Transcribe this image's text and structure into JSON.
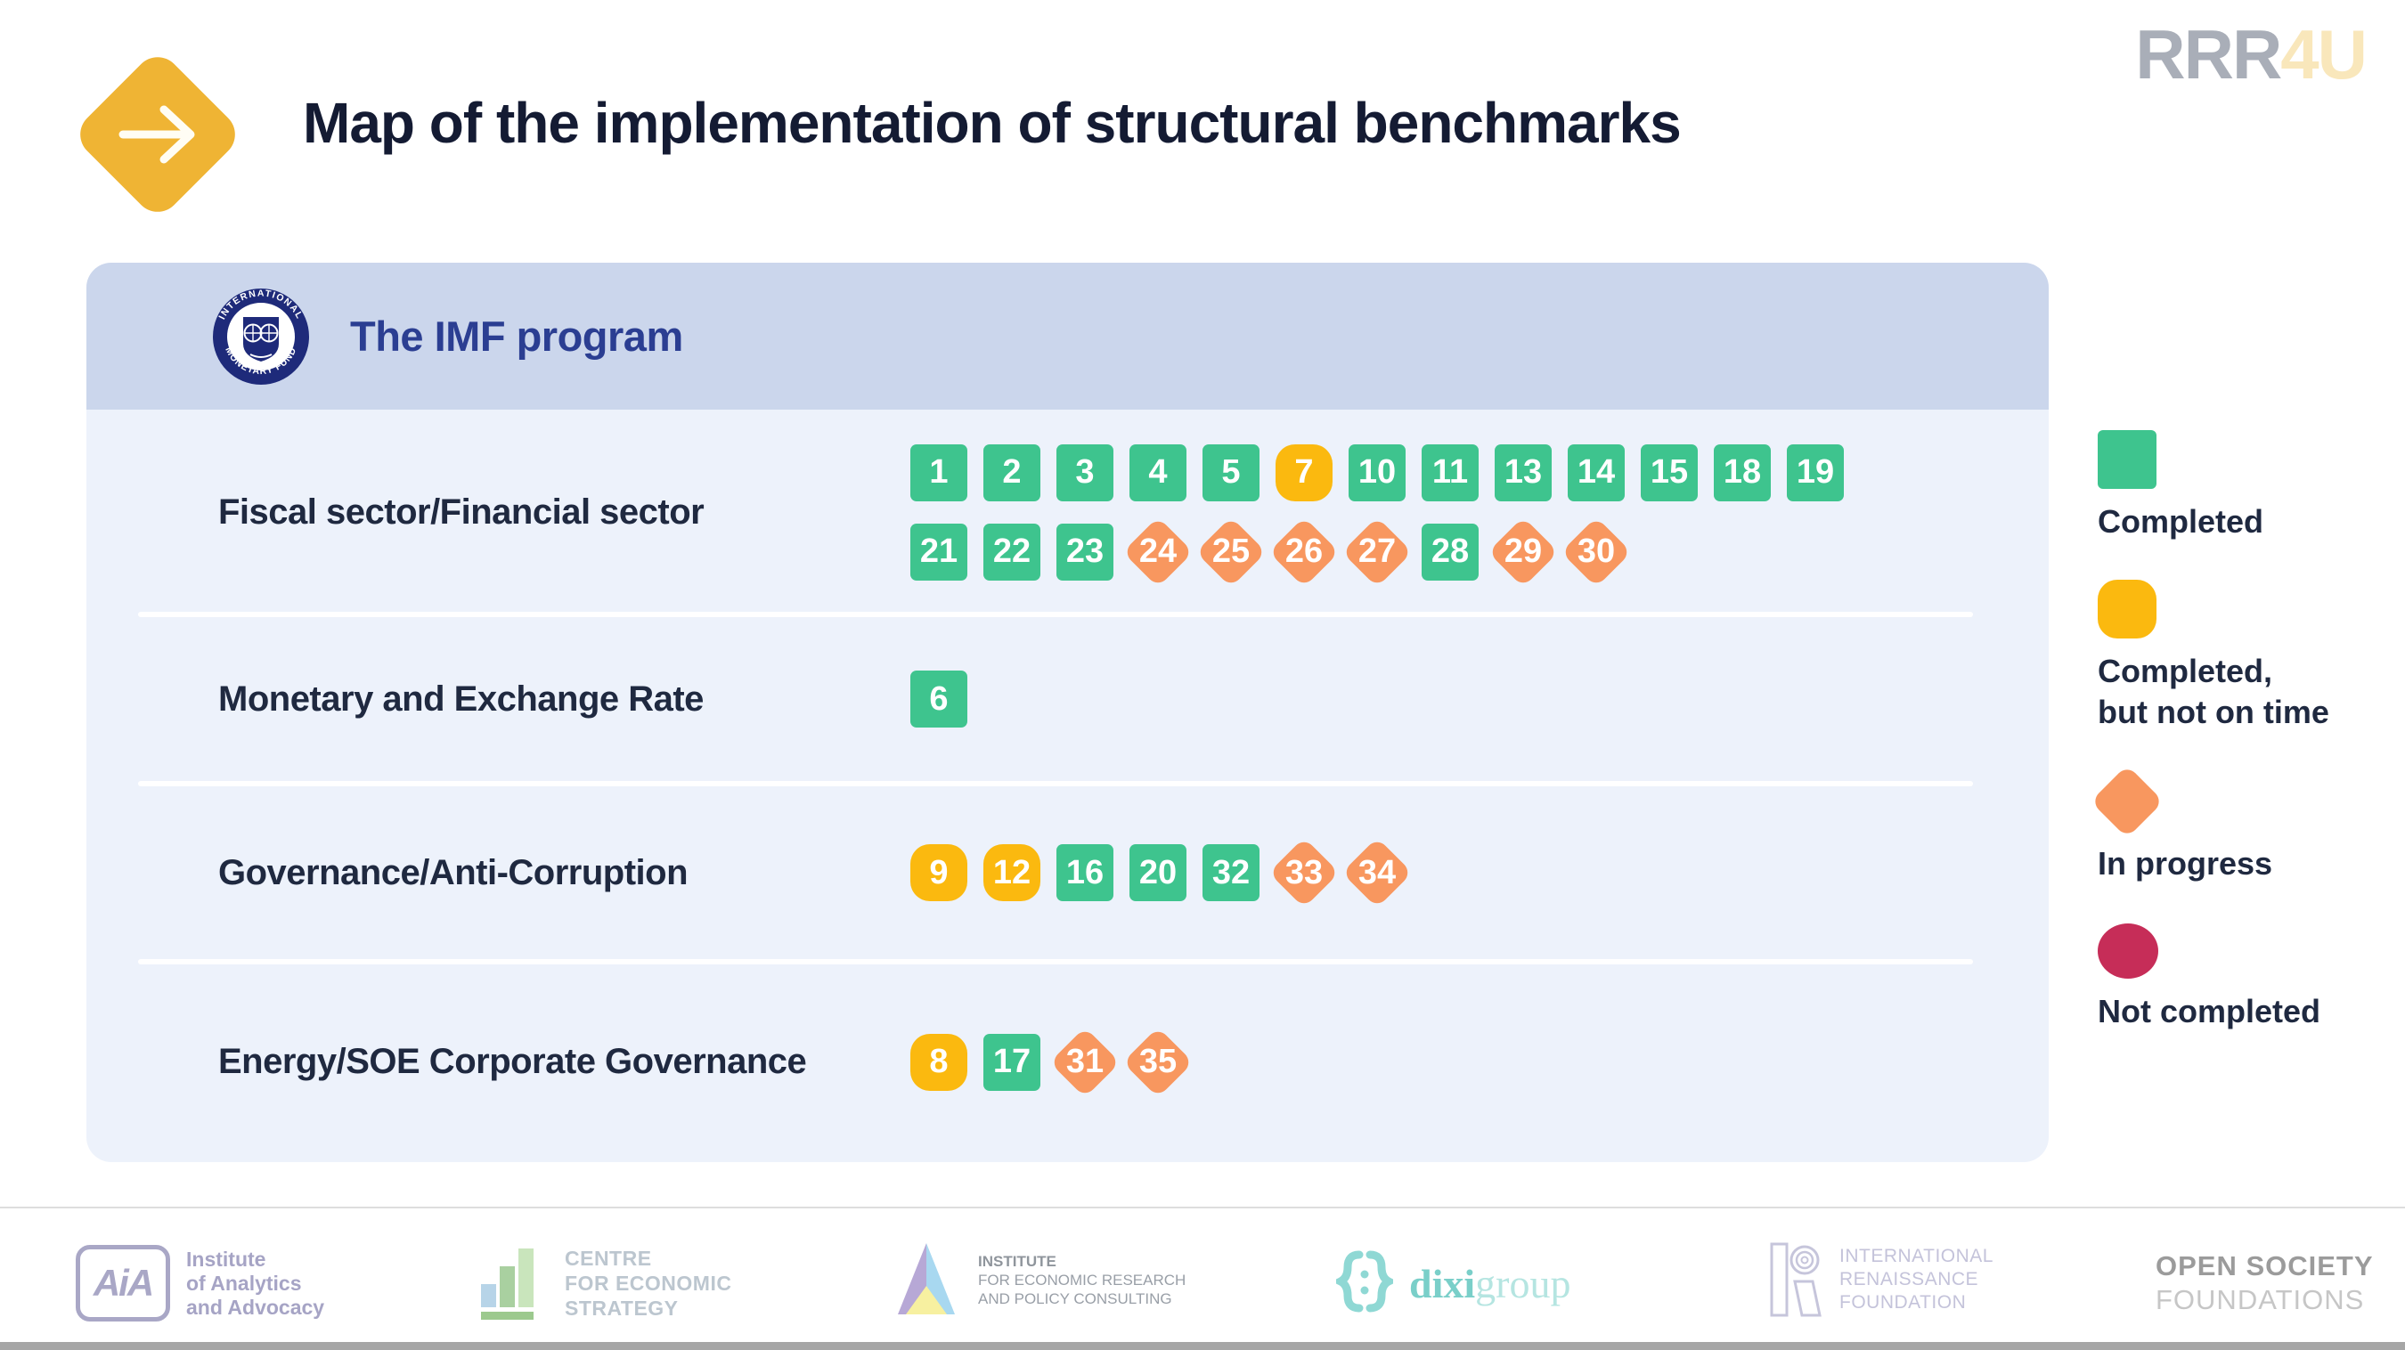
{
  "page": {
    "title": "Map of the implementation of structural benchmarks"
  },
  "brand": {
    "gray": "RRR",
    "accent": "4U"
  },
  "program": {
    "title": "The IMF program",
    "seal_top_text": "INTERNATIONAL",
    "seal_bottom_text": "MONETARY FUND",
    "rows": [
      {
        "label": "Fiscal sector/Financial sector",
        "lines": [
          [
            {
              "n": "1",
              "status": "completed"
            },
            {
              "n": "2",
              "status": "completed"
            },
            {
              "n": "3",
              "status": "completed"
            },
            {
              "n": "4",
              "status": "completed"
            },
            {
              "n": "5",
              "status": "completed"
            },
            {
              "n": "7",
              "status": "late"
            },
            {
              "n": "10",
              "status": "completed"
            },
            {
              "n": "11",
              "status": "completed"
            },
            {
              "n": "13",
              "status": "completed"
            },
            {
              "n": "14",
              "status": "completed"
            },
            {
              "n": "15",
              "status": "completed"
            },
            {
              "n": "18",
              "status": "completed"
            },
            {
              "n": "19",
              "status": "completed"
            }
          ],
          [
            {
              "n": "21",
              "status": "completed"
            },
            {
              "n": "22",
              "status": "completed"
            },
            {
              "n": "23",
              "status": "completed"
            },
            {
              "n": "24",
              "status": "progress"
            },
            {
              "n": "25",
              "status": "progress"
            },
            {
              "n": "26",
              "status": "progress"
            },
            {
              "n": "27",
              "status": "progress"
            },
            {
              "n": "28",
              "status": "completed"
            },
            {
              "n": "29",
              "status": "progress"
            },
            {
              "n": "30",
              "status": "progress"
            }
          ]
        ]
      },
      {
        "label": "Monetary and Exchange Rate",
        "lines": [
          [
            {
              "n": "6",
              "status": "completed"
            }
          ]
        ]
      },
      {
        "label": "Governance/Anti-Corruption",
        "lines": [
          [
            {
              "n": "9",
              "status": "late"
            },
            {
              "n": "12",
              "status": "late"
            },
            {
              "n": "16",
              "status": "completed"
            },
            {
              "n": "20",
              "status": "completed"
            },
            {
              "n": "32",
              "status": "completed"
            },
            {
              "n": "33",
              "status": "progress"
            },
            {
              "n": "34",
              "status": "progress"
            }
          ]
        ]
      },
      {
        "label": "Energy/SOE Corporate Governance",
        "lines": [
          [
            {
              "n": "8",
              "status": "late"
            },
            {
              "n": "17",
              "status": "completed"
            },
            {
              "n": "31",
              "status": "progress"
            },
            {
              "n": "35",
              "status": "progress"
            }
          ]
        ]
      }
    ]
  },
  "legend": [
    {
      "status": "completed",
      "label_lines": [
        "Completed"
      ]
    },
    {
      "status": "late",
      "label_lines": [
        "Completed,",
        "but not on time"
      ]
    },
    {
      "status": "progress",
      "label_lines": [
        "In progress"
      ]
    },
    {
      "status": "not_completed",
      "label_lines": [
        "Not completed"
      ]
    }
  ],
  "footer": {
    "partners": [
      {
        "id": "aia",
        "badge": "AiA",
        "lines": [
          "Institute",
          "of Analytics",
          "and Advocacy"
        ]
      },
      {
        "id": "ces",
        "lines": [
          "CENTRE",
          "FOR ECONOMIC",
          "STRATEGY"
        ]
      },
      {
        "id": "ier",
        "lines": [
          "INSTITUTE",
          "FOR ECONOMIC RESEARCH",
          "AND POLICY CONSULTING"
        ]
      },
      {
        "id": "dixi",
        "word_dark": "dixi",
        "word_light": "group"
      },
      {
        "id": "irf",
        "lines": [
          "INTERNATIONAL",
          "RENAISSANCE",
          "FOUNDATION"
        ]
      },
      {
        "id": "osf",
        "lines": [
          "OPEN SOCIETY",
          "FOUNDATIONS"
        ]
      }
    ]
  },
  "colors": {
    "completed": "#3EC48E",
    "late": "#FBB90F",
    "progress": "#F8975F",
    "not_completed": "#C62D58",
    "accent_gold": "#EFB434",
    "header_bg": "#CBD6EC",
    "card_bg": "#EDF2FB",
    "title_text": "#141B33",
    "label_text": "#1F2940",
    "imf_blue": "#2B3E92",
    "imf_navy": "#1E2A7A",
    "brand_gray": "#A9AEB8",
    "brand_cream": "#F9E7BB"
  }
}
